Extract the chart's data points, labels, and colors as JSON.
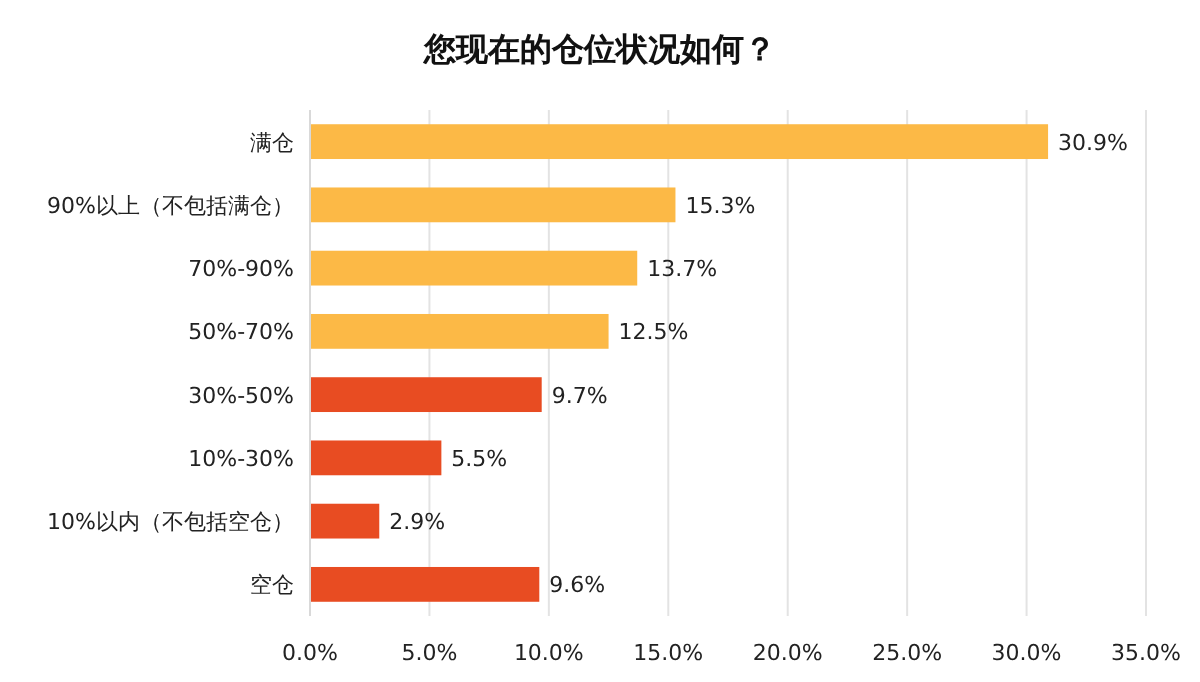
{
  "chart_data": {
    "type": "bar",
    "orientation": "horizontal",
    "title": "您现在的仓位状况如何？",
    "categories": [
      "满仓",
      "90%以上（不包括满仓）",
      "70%-90%",
      "50%-70%",
      "30%-50%",
      "10%-30%",
      "10%以内（不包括空仓）",
      "空仓"
    ],
    "values": [
      30.9,
      15.3,
      13.7,
      12.5,
      9.7,
      5.5,
      2.9,
      9.6
    ],
    "colors": [
      "#fcb946",
      "#fcb946",
      "#fcb946",
      "#fcb946",
      "#e84c22",
      "#e84c22",
      "#e84c22",
      "#e84c22"
    ],
    "value_labels": [
      "30.9%",
      "15.3%",
      "13.7%",
      "12.5%",
      "9.7%",
      "5.5%",
      "2.9%",
      "9.6%"
    ],
    "xlim": [
      0,
      35
    ],
    "xticks": [
      {
        "value": 0,
        "label": "0.0%"
      },
      {
        "value": 5,
        "label": "5.0%"
      },
      {
        "value": 10,
        "label": "10.0%"
      },
      {
        "value": 15,
        "label": "15.0%"
      },
      {
        "value": 20,
        "label": "20.0%"
      },
      {
        "value": 25,
        "label": "25.0%"
      },
      {
        "value": 30,
        "label": "30.0%"
      },
      {
        "value": 35,
        "label": "35.0%"
      }
    ],
    "grid": "x"
  }
}
